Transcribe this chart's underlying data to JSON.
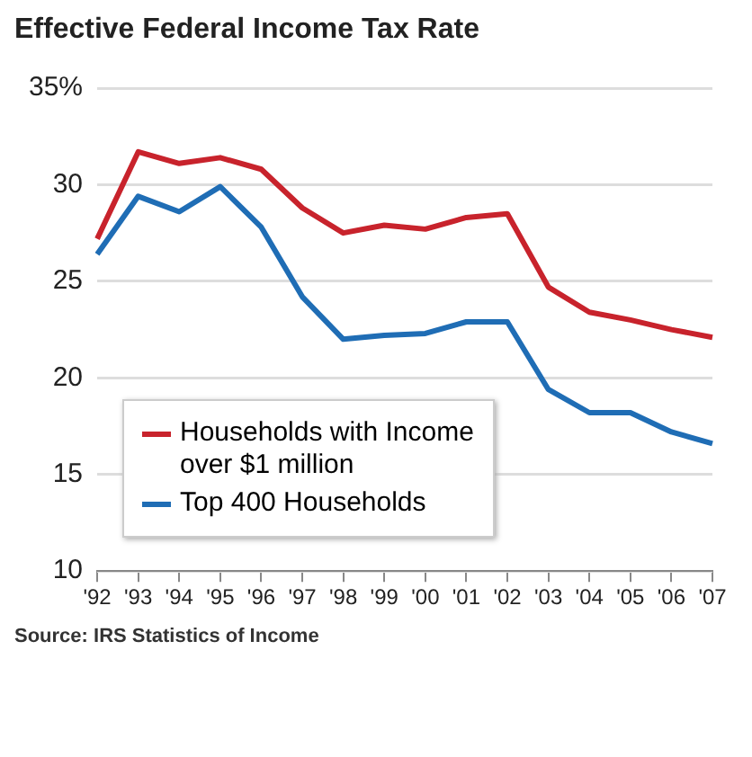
{
  "chart_data": {
    "type": "line",
    "title": "Effective Federal Income Tax Rate",
    "categories": [
      "'92",
      "'93",
      "'94",
      "'95",
      "'96",
      "'97",
      "'98",
      "'99",
      "'00",
      "'01",
      "'02",
      "'03",
      "'04",
      "'05",
      "'06",
      "'07"
    ],
    "series": [
      {
        "name": "Households with Income over $1 million",
        "color": "#c8232c",
        "values": [
          27.2,
          31.7,
          31.1,
          31.4,
          30.8,
          28.8,
          27.5,
          27.9,
          27.7,
          28.3,
          28.5,
          24.7,
          23.4,
          23.0,
          22.5,
          22.1
        ]
      },
      {
        "name": "Top 400 Households",
        "color": "#1f6db5",
        "values": [
          26.4,
          29.4,
          28.6,
          29.9,
          27.8,
          24.2,
          22.0,
          22.2,
          22.3,
          22.9,
          22.9,
          19.4,
          18.2,
          18.2,
          17.2,
          16.6
        ]
      }
    ],
    "ylim": [
      10,
      35
    ],
    "yticks": [
      10,
      15,
      20,
      25,
      30,
      {
        "value": 35,
        "label": "35%"
      }
    ],
    "grid": "y",
    "legend": "bottom left",
    "marker": "none",
    "line_style": "solid",
    "annotations": [
      "Source: IRS Statistics of Income"
    ]
  }
}
